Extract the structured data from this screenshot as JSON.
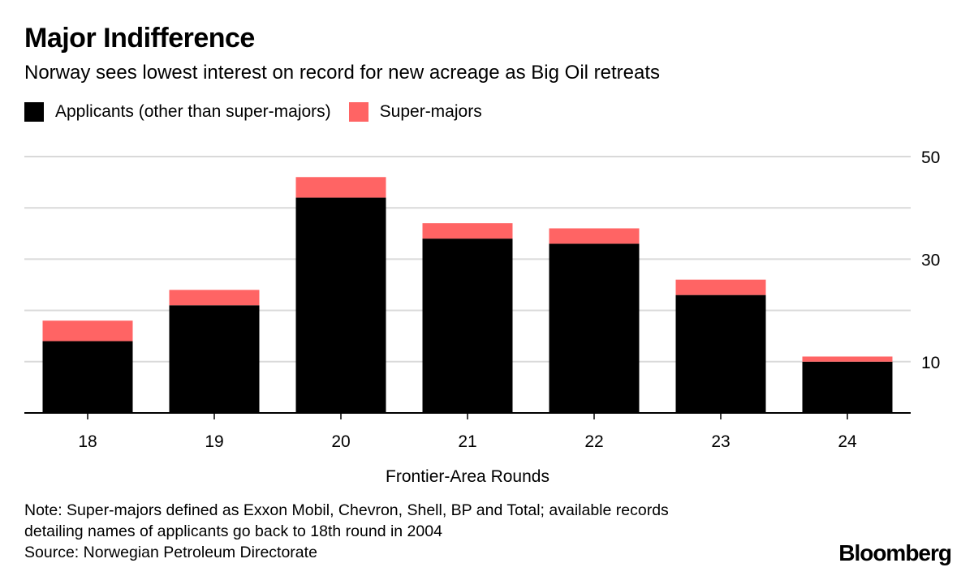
{
  "title": "Major Indifference",
  "subtitle": "Norway sees lowest interest on record for new acreage as Big Oil retreats",
  "legend": {
    "items": [
      {
        "label": "Applicants (other than super-majors)",
        "color": "#000000"
      },
      {
        "label": "Super-majors",
        "color": "#ff6464"
      }
    ]
  },
  "notes": {
    "line1": "Note: Super-majors defined as Exxon Mobil, Chevron, Shell, BP and Total; available records",
    "line2": "detailing names of applicants go back to 18th round in 2004",
    "source": "Source: Norwegian Petroleum Directorate"
  },
  "brand": "Bloomberg",
  "chart_data": {
    "type": "bar",
    "stacked": true,
    "categories": [
      "18",
      "19",
      "20",
      "21",
      "22",
      "23",
      "24"
    ],
    "series": [
      {
        "name": "Applicants (other than super-majors)",
        "color": "#000000",
        "values": [
          14,
          21,
          42,
          34,
          33,
          23,
          10
        ]
      },
      {
        "name": "Super-majors",
        "color": "#ff6464",
        "values": [
          4,
          3,
          4,
          3,
          3,
          3,
          1
        ]
      }
    ],
    "xlabel": "Frontier-Area Rounds",
    "ylabel": "",
    "ylim": [
      0,
      50
    ],
    "yticks": [
      10,
      20,
      30,
      40,
      50
    ],
    "ytick_labels": [
      "10",
      "",
      "30",
      "",
      "50"
    ],
    "grid": true
  }
}
